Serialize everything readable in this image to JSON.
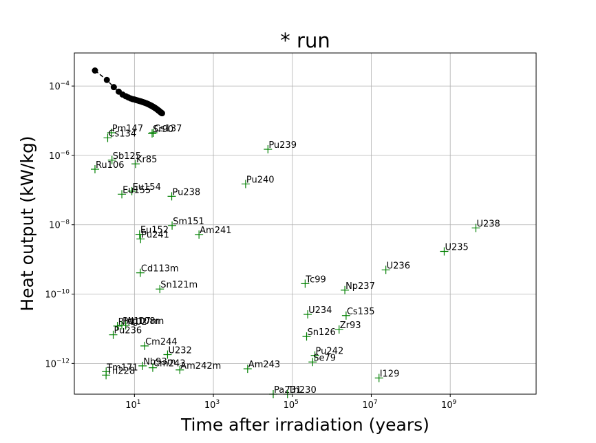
{
  "chart_data": {
    "type": "scatter",
    "title": "* run",
    "xlabel": "Time after irradiation (years)",
    "ylabel": "Heat output (kW/kg)",
    "xscale": "log",
    "yscale": "log",
    "xlim": [
      0.3,
      150000000000
    ],
    "ylim": [
      1.3e-13,
      0.0009
    ],
    "grid": true,
    "xticks": [
      {
        "value": 10,
        "mant": "10",
        "exp": "1"
      },
      {
        "value": 1000,
        "mant": "10",
        "exp": "3"
      },
      {
        "value": 100000,
        "mant": "10",
        "exp": "5"
      },
      {
        "value": 10000000,
        "mant": "10",
        "exp": "7"
      },
      {
        "value": 1000000000,
        "mant": "10",
        "exp": "9"
      }
    ],
    "yticks": [
      {
        "value": 1e-12,
        "mant": "10",
        "exp": "−12"
      },
      {
        "value": 1e-10,
        "mant": "10",
        "exp": "−10"
      },
      {
        "value": 1e-08,
        "mant": "10",
        "exp": "−8"
      },
      {
        "value": 1e-06,
        "mant": "10",
        "exp": "−6"
      },
      {
        "value": 0.0001,
        "mant": "10",
        "exp": "−4"
      }
    ],
    "series": [
      {
        "marker": "circle",
        "line": "dashed",
        "color": "#000000",
        "points": [
          [
            1,
            0.00028
          ],
          [
            2,
            0.00015
          ],
          [
            3,
            9.3e-05
          ],
          [
            4,
            6.9e-05
          ],
          [
            5,
            5.7e-05
          ],
          [
            6,
            5.1e-05
          ],
          [
            7,
            4.7e-05
          ],
          [
            8,
            4.4e-05
          ],
          [
            9,
            4.2e-05
          ],
          [
            10,
            4.1e-05
          ],
          [
            11,
            3.95e-05
          ],
          [
            12,
            3.85e-05
          ],
          [
            13,
            3.75e-05
          ],
          [
            14,
            3.66e-05
          ],
          [
            15,
            3.57e-05
          ],
          [
            16,
            3.48e-05
          ],
          [
            17,
            3.4e-05
          ],
          [
            18,
            3.33e-05
          ],
          [
            19,
            3.25e-05
          ],
          [
            20,
            3.18e-05
          ],
          [
            21,
            3.1e-05
          ],
          [
            22,
            3.03e-05
          ],
          [
            23,
            2.96e-05
          ],
          [
            24,
            2.89e-05
          ],
          [
            25,
            2.82e-05
          ],
          [
            26,
            2.76e-05
          ],
          [
            27,
            2.7e-05
          ],
          [
            28,
            2.64e-05
          ],
          [
            29,
            2.58e-05
          ],
          [
            30,
            2.52e-05
          ],
          [
            31,
            2.46e-05
          ],
          [
            32,
            2.4e-05
          ],
          [
            33,
            2.35e-05
          ],
          [
            34,
            2.3e-05
          ],
          [
            35,
            2.25e-05
          ],
          [
            36,
            2.2e-05
          ],
          [
            37,
            2.15e-05
          ],
          [
            38,
            2.1e-05
          ],
          [
            39,
            2.05e-05
          ],
          [
            40,
            2e-05
          ],
          [
            41,
            1.96e-05
          ],
          [
            42,
            1.92e-05
          ],
          [
            43,
            1.88e-05
          ],
          [
            44,
            1.84e-05
          ],
          [
            45,
            1.8e-05
          ],
          [
            46,
            1.76e-05
          ],
          [
            47,
            1.73e-05
          ],
          [
            48,
            1.7e-05
          ],
          [
            49,
            1.67e-05
          ],
          [
            50,
            1.64e-05
          ]
        ]
      },
      {
        "marker": "plus",
        "color": "#008000",
        "points": [
          {
            "label": "Pm147",
            "x": 2.6,
            "y": 4.5e-06
          },
          {
            "label": "Cs134",
            "x": 2.1,
            "y": 3.2e-06
          },
          {
            "label": "Sr90",
            "x": 28,
            "y": 4.3e-06
          },
          {
            "label": "Cs137",
            "x": 30,
            "y": 4.5e-06
          },
          {
            "label": "Sb125",
            "x": 2.7,
            "y": 7.3e-07
          },
          {
            "label": "Kr85",
            "x": 10.7,
            "y": 5.7e-07
          },
          {
            "label": "Ru106",
            "x": 1,
            "y": 4e-07
          },
          {
            "label": "Eu154",
            "x": 8.6,
            "y": 9.3e-08
          },
          {
            "label": "Eu155",
            "x": 4.8,
            "y": 7.6e-08
          },
          {
            "label": "Pu238",
            "x": 88,
            "y": 6.6e-08
          },
          {
            "label": "Pu239",
            "x": 24100,
            "y": 1.5e-06
          },
          {
            "label": "Pu240",
            "x": 6560,
            "y": 1.5e-07
          },
          {
            "label": "Sm151",
            "x": 90,
            "y": 9.5e-09
          },
          {
            "label": "Am241",
            "x": 432,
            "y": 5.2e-09
          },
          {
            "label": "Eu152",
            "x": 13.5,
            "y": 5.3e-09
          },
          {
            "label": "Pu241",
            "x": 14.3,
            "y": 3.9e-09
          },
          {
            "label": "Cd113m",
            "x": 14.1,
            "y": 4.1e-10
          },
          {
            "label": "Sn121m",
            "x": 44,
            "y": 1.4e-10
          },
          {
            "label": "U238",
            "x": 4470000000,
            "y": 8.1e-09
          },
          {
            "label": "U235",
            "x": 704000000,
            "y": 1.7e-09
          },
          {
            "label": "U236",
            "x": 23400000,
            "y": 5e-10
          },
          {
            "label": "Tc99",
            "x": 211000,
            "y": 2e-10
          },
          {
            "label": "Np237",
            "x": 2140000,
            "y": 1.3e-10
          },
          {
            "label": "U234",
            "x": 245000,
            "y": 2.6e-11
          },
          {
            "label": "Cs135",
            "x": 2300000,
            "y": 2.4e-11
          },
          {
            "label": "Zr93",
            "x": 1530000,
            "y": 9.5e-12
          },
          {
            "label": "Sn126",
            "x": 230000,
            "y": 6e-12
          },
          {
            "label": "Pu242",
            "x": 373000,
            "y": 1.7e-12
          },
          {
            "label": "Se79",
            "x": 327000,
            "y": 1.1e-12
          },
          {
            "label": "I129",
            "x": 15700000,
            "y": 3.8e-13
          },
          {
            "label": "Am243",
            "x": 7370,
            "y": 7e-13
          },
          {
            "label": "Pa231",
            "x": 32800,
            "y": 1.3e-13
          },
          {
            "label": "Th230",
            "x": 75400,
            "y": 1.3e-13
          },
          {
            "label": "Rh102",
            "x": 3.7,
            "y": 1.2e-11
          },
          {
            "label": "Pd107m",
            "x": 4.8,
            "y": 1.25e-11
          },
          {
            "label": "Ag108m",
            "x": 6.0,
            "y": 1.25e-11
          },
          {
            "label": "Pu236",
            "x": 2.9,
            "y": 6.7e-12
          },
          {
            "label": "Cm244",
            "x": 18.1,
            "y": 3.2e-12
          },
          {
            "label": "U232",
            "x": 69,
            "y": 1.8e-12
          },
          {
            "label": "Nb93m",
            "x": 16.1,
            "y": 8.5e-13
          },
          {
            "label": "Cm243",
            "x": 29.1,
            "y": 7.5e-13
          },
          {
            "label": "Am242m",
            "x": 141,
            "y": 6.5e-13
          },
          {
            "label": "Tm171",
            "x": 1.92,
            "y": 5.8e-13
          },
          {
            "label": "Th228",
            "x": 1.91,
            "y": 4.6e-13
          }
        ]
      }
    ]
  },
  "colors": {
    "grid": "#b0b0b0",
    "axes": "#000000",
    "decay_markers": "#000000",
    "nuclide_markers": "#008000"
  }
}
